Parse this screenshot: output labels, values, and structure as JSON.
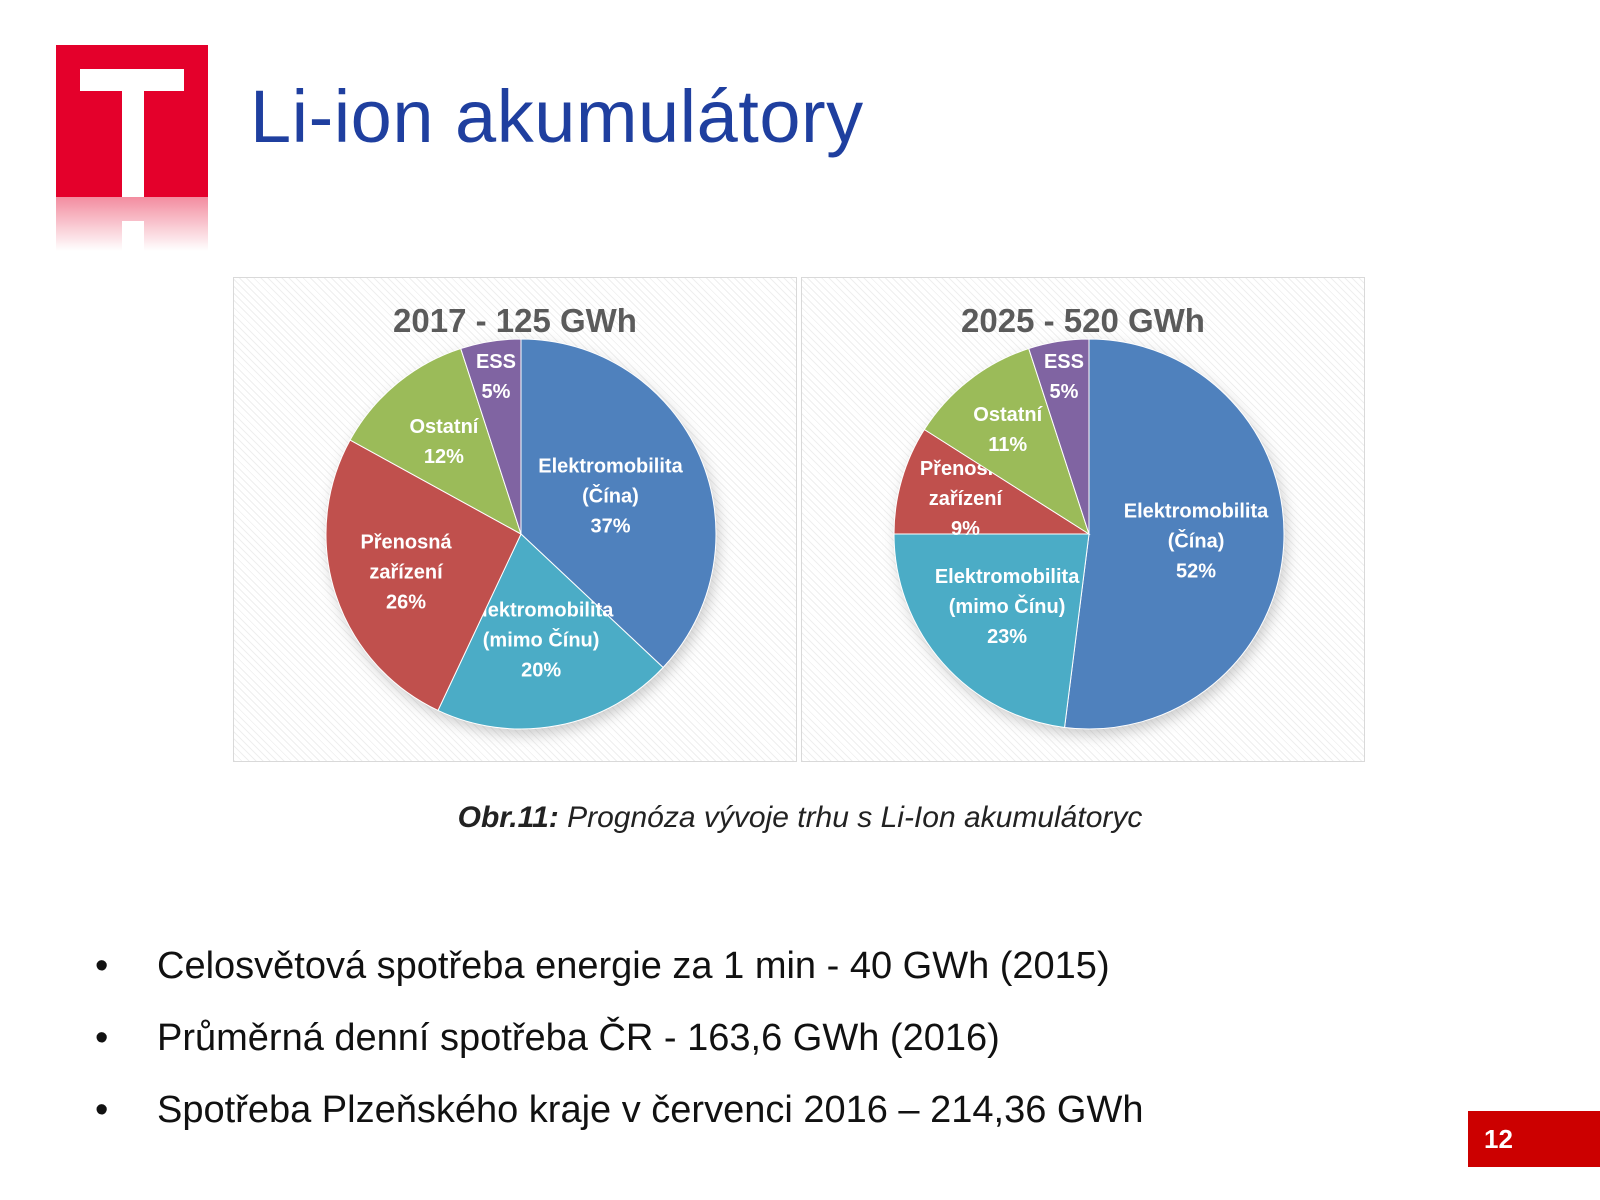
{
  "slide": {
    "title": "Li-ion akumulátory",
    "caption_lead": "Obr.11:",
    "caption_text": " Prognóza vývoje trhu s Li-Ion akumulátoryc",
    "bullets": [
      "Celosvětová spotřeba energie za 1 min - 40 GWh (2015)",
      "Průměrná denní spotřeba ČR - 163,6 GWh (2016)",
      "Spotřeba Plzeňského kraje v červenci 2016 – 214,36 GWh"
    ],
    "page_number": "12",
    "colors": {
      "title": "#1f3f9f",
      "brand_red": "#e4002b",
      "page_badge": "#cc0000"
    }
  },
  "chart_data": [
    {
      "type": "pie",
      "title": "2017 - 125 GWh",
      "slices": [
        {
          "label": [
            "Elektromobilita",
            "(Čína)"
          ],
          "value": 37,
          "value_label": "37%",
          "color": "#4f81bd"
        },
        {
          "label": [
            "Elektromobilita",
            "(mimo Čínu)"
          ],
          "value": 20,
          "value_label": "20%",
          "color": "#4bacc6"
        },
        {
          "label": [
            "Přenosná",
            "zařízení"
          ],
          "value": 26,
          "value_label": "26%",
          "color": "#c0504d"
        },
        {
          "label": [
            "Ostatní"
          ],
          "value": 12,
          "value_label": "12%",
          "color": "#9bbb59"
        },
        {
          "label": [
            "ESS"
          ],
          "value": 5,
          "value_label": "5%",
          "color": "#8064a2"
        }
      ]
    },
    {
      "type": "pie",
      "title": "2025 - 520 GWh",
      "slices": [
        {
          "label": [
            "Elektromobilita",
            "(Čína)"
          ],
          "value": 52,
          "value_label": "52%",
          "color": "#4f81bd"
        },
        {
          "label": [
            "Elektromobilita",
            "(mimo Čínu)"
          ],
          "value": 23,
          "value_label": "23%",
          "color": "#4bacc6"
        },
        {
          "label": [
            "Přenosná",
            "zařízení"
          ],
          "value": 9,
          "value_label": "9%",
          "color": "#c0504d"
        },
        {
          "label": [
            "Ostatní"
          ],
          "value": 11,
          "value_label": "11%",
          "color": "#9bbb59"
        },
        {
          "label": [
            "ESS"
          ],
          "value": 5,
          "value_label": "5%",
          "color": "#8064a2"
        }
      ]
    }
  ]
}
